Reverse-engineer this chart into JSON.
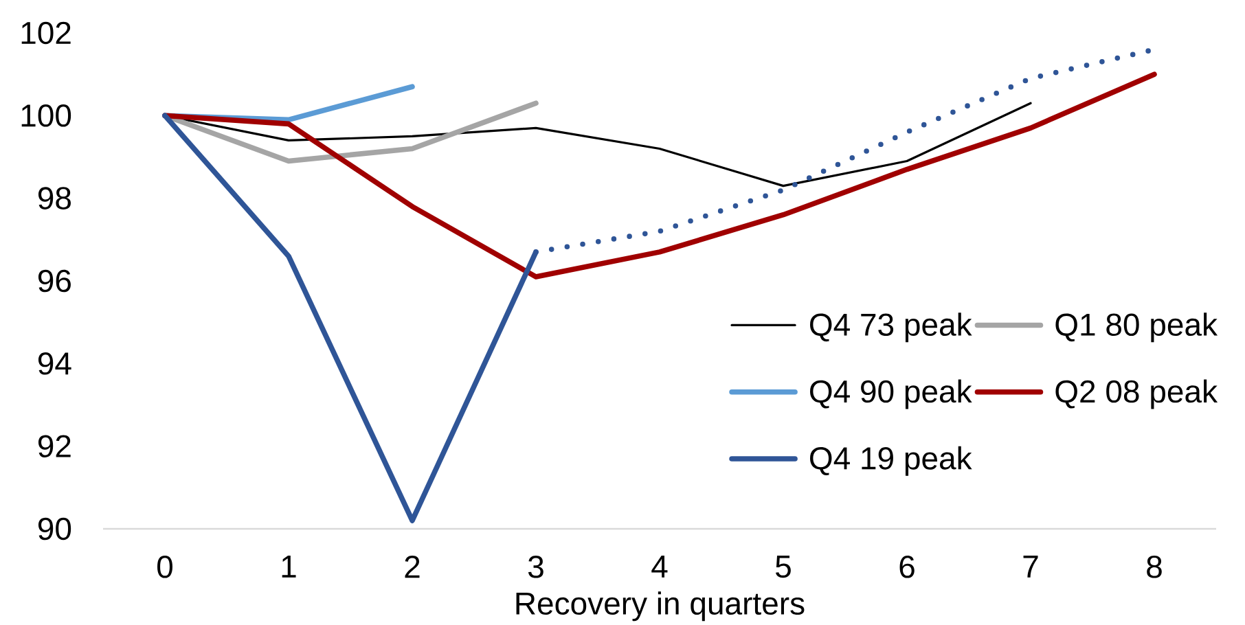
{
  "chart_data": {
    "type": "line",
    "xlabel": "Recovery in quarters",
    "x": [
      0,
      1,
      2,
      3,
      4,
      5,
      6,
      7,
      8
    ],
    "xlim": [
      -0.5,
      8.5
    ],
    "xticks": [
      0,
      1,
      2,
      3,
      4,
      5,
      6,
      7,
      8
    ],
    "ylim": [
      90,
      102
    ],
    "yticks": [
      90,
      92,
      94,
      96,
      98,
      100,
      102
    ],
    "grid": false,
    "legend": "bottom right",
    "series": [
      {
        "name": "Q4 73 peak",
        "color": "#000000",
        "values": [
          100,
          99.4,
          99.5,
          99.7,
          99.2,
          98.3,
          98.9,
          100.3,
          null
        ]
      },
      {
        "name": "Q1 80 peak",
        "color": "#a5a5a5",
        "values": [
          100,
          98.9,
          99.2,
          100.3,
          null,
          null,
          null,
          null,
          null
        ]
      },
      {
        "name": "Q4 90 peak",
        "color": "#5b9bd5",
        "values": [
          100,
          99.9,
          100.7,
          null,
          null,
          null,
          null,
          null,
          null
        ]
      },
      {
        "name": "Q2 08 peak",
        "color": "#a00000",
        "values": [
          100,
          99.8,
          97.8,
          96.1,
          96.7,
          97.6,
          98.7,
          99.7,
          101.0
        ]
      },
      {
        "name": "Q4 19 peak",
        "color": "#2f5597",
        "values": [
          100,
          96.6,
          90.2,
          96.7,
          null,
          null,
          null,
          null,
          null
        ]
      },
      {
        "color": "#2f5597",
        "x": [
          3,
          4,
          5,
          6,
          7,
          8
        ],
        "values": [
          96.7,
          97.2,
          98.2,
          99.6,
          100.9,
          101.6
        ],
        "line_style": "dotted"
      }
    ]
  }
}
